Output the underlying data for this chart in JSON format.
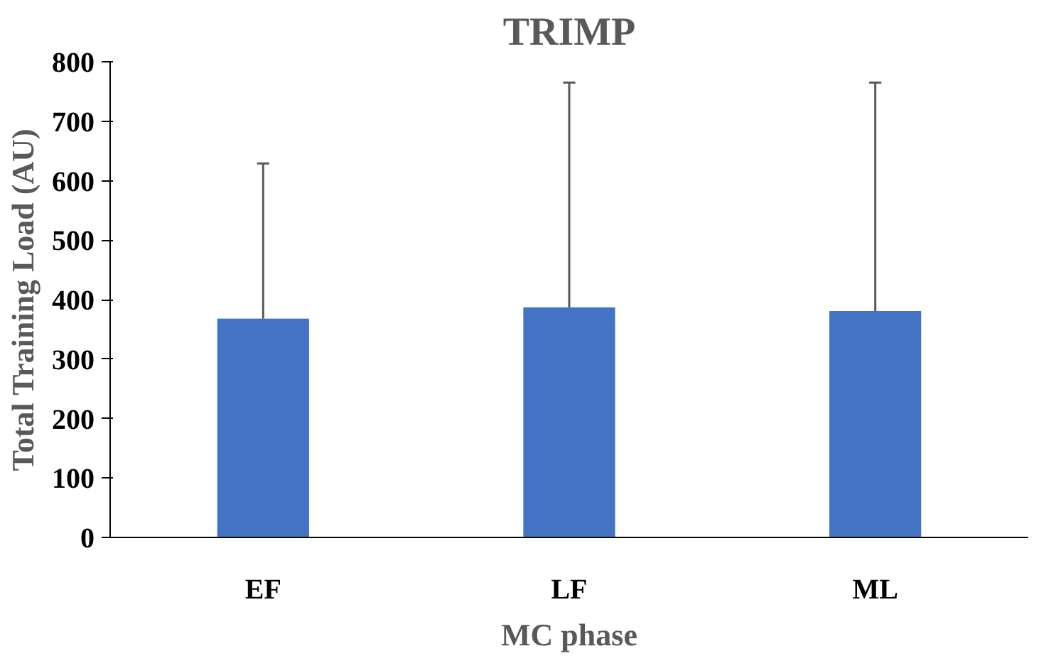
{
  "chart_data": {
    "type": "bar",
    "title": "TRIMP",
    "xlabel": "MC phase",
    "ylabel": "Total Training Load (AU)",
    "categories": [
      "EF",
      "LF",
      "ML"
    ],
    "values": [
      368,
      387,
      381
    ],
    "errors": [
      [
        368,
        629
      ],
      [
        387,
        765
      ],
      [
        381,
        765
      ]
    ],
    "color": "#4472c4",
    "ylim": [
      0,
      800
    ],
    "yticks": [
      0,
      100,
      200,
      300,
      400,
      500,
      600,
      700,
      800
    ],
    "grid": false
  }
}
